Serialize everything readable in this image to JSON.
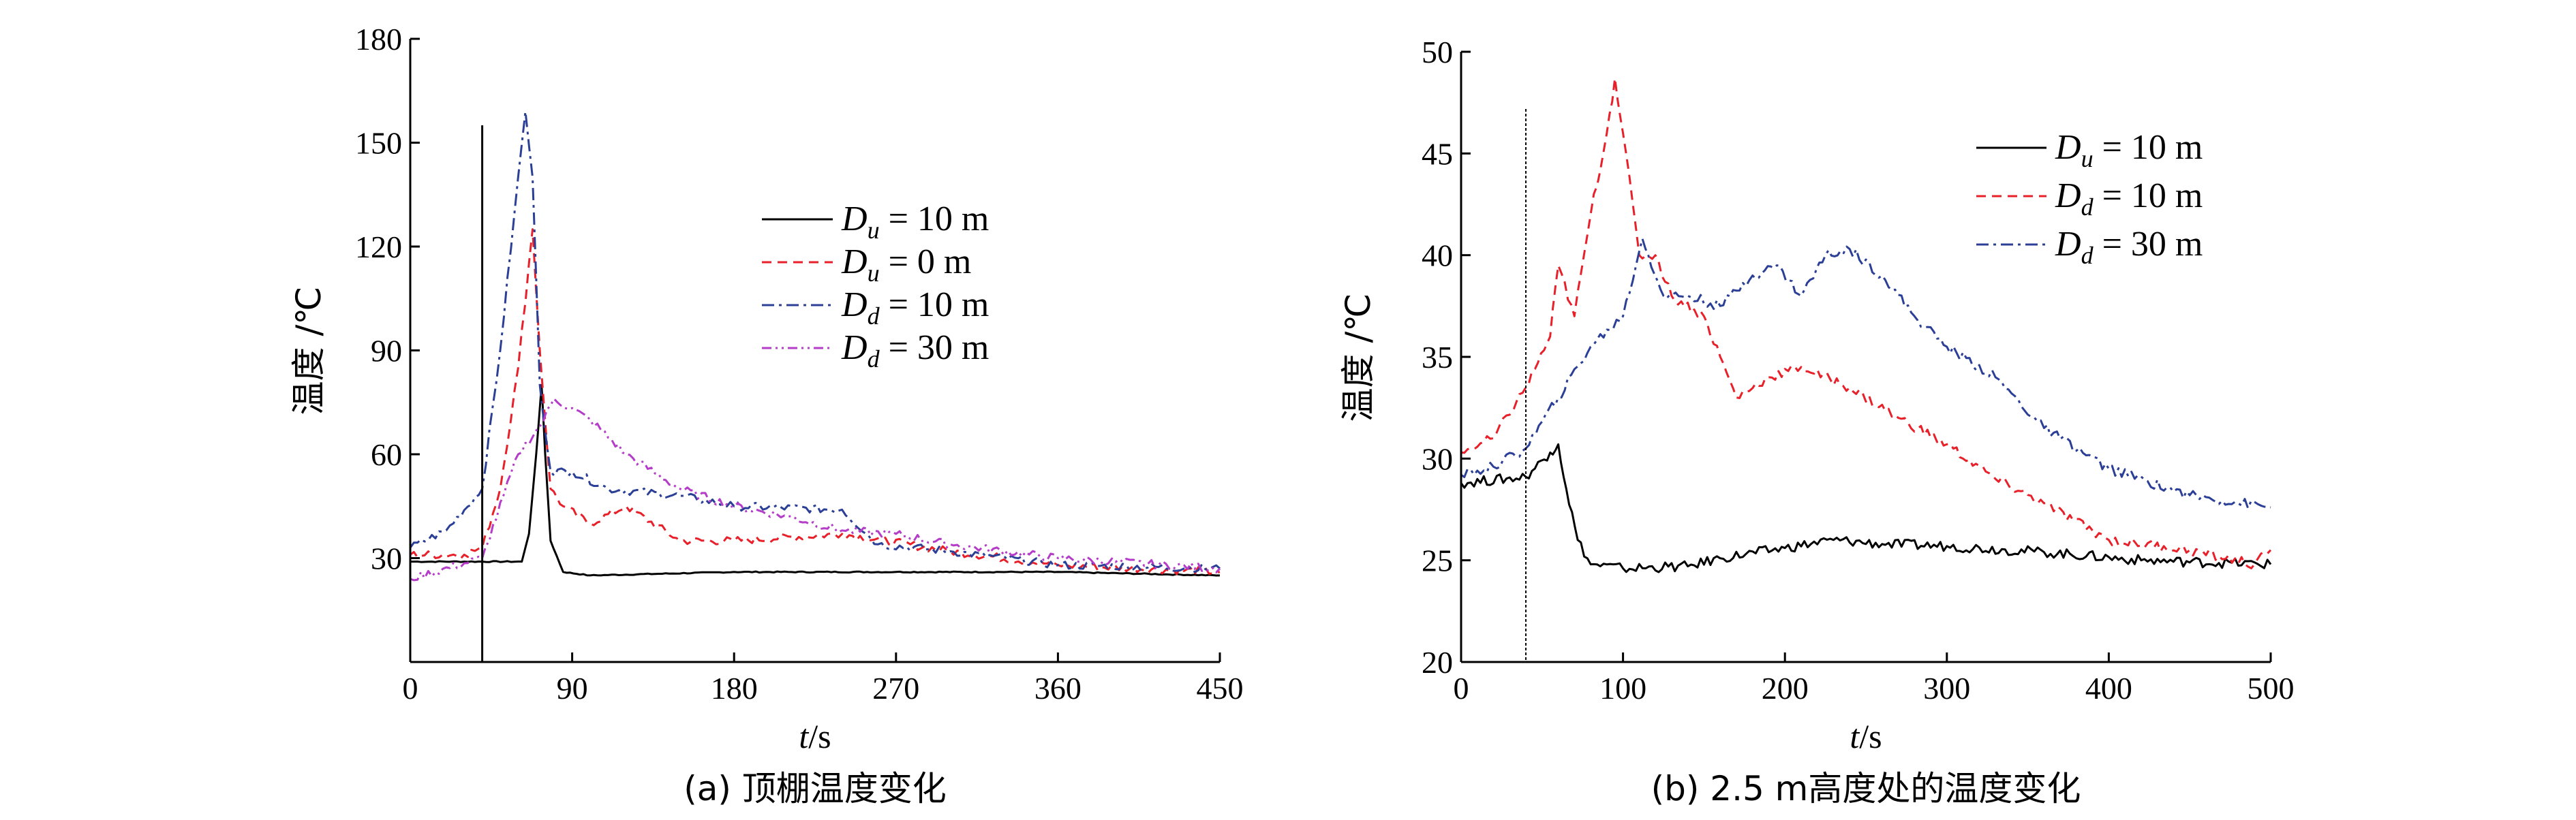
{
  "chart_data": [
    {
      "type": "line",
      "caption": "(a) 顶棚温度变化",
      "xlabel": {
        "var": "t",
        "unit": "/s"
      },
      "ylabel": "温度 /℃",
      "xlim": [
        0,
        450
      ],
      "ylim": [
        0,
        180
      ],
      "xticks": [
        "0",
        "90",
        "180",
        "270",
        "360",
        "450"
      ],
      "yticks": [
        "30",
        "60",
        "90",
        "120",
        "150",
        "180"
      ],
      "marker_x": 40,
      "series": [
        {
          "name": "Du = 10 m",
          "label_main": "D",
          "label_sub": "u",
          "label_rest": " = 10 m",
          "color": "#000000",
          "dash": "",
          "points": [
            [
              0,
              29
            ],
            [
              62,
              29
            ],
            [
              66,
              37
            ],
            [
              70,
              60
            ],
            [
              73,
              80
            ],
            [
              75,
              60
            ],
            [
              78,
              35
            ],
            [
              85,
              26
            ],
            [
              100,
              25
            ],
            [
              180,
              26
            ],
            [
              270,
              26
            ],
            [
              360,
              26
            ],
            [
              450,
              25
            ]
          ]
        },
        {
          "name": "Du = 0 m",
          "label_main": "D",
          "label_sub": "u",
          "label_rest": " = 0 m",
          "color": "#e8202a",
          "dash": "14,9",
          "points": [
            [
              0,
              31
            ],
            [
              30,
              31
            ],
            [
              40,
              33
            ],
            [
              50,
              50
            ],
            [
              60,
              85
            ],
            [
              68,
              125
            ],
            [
              72,
              90
            ],
            [
              78,
              50
            ],
            [
              85,
              45
            ],
            [
              100,
              40
            ],
            [
              120,
              45
            ],
            [
              150,
              35
            ],
            [
              180,
              35
            ],
            [
              240,
              37
            ],
            [
              300,
              32
            ],
            [
              360,
              28
            ],
            [
              450,
              26
            ]
          ]
        },
        {
          "name": "Dd = 10 m",
          "label_main": "D",
          "label_sub": "d",
          "label_rest": " = 10 m",
          "color": "#2b3f96",
          "dash": "18,7,4,7",
          "points": [
            [
              0,
              33
            ],
            [
              20,
              38
            ],
            [
              40,
              50
            ],
            [
              50,
              90
            ],
            [
              58,
              130
            ],
            [
              64,
              159
            ],
            [
              68,
              140
            ],
            [
              72,
              80
            ],
            [
              78,
              55
            ],
            [
              90,
              55
            ],
            [
              110,
              50
            ],
            [
              150,
              48
            ],
            [
              180,
              45
            ],
            [
              240,
              44
            ],
            [
              260,
              34
            ],
            [
              300,
              32
            ],
            [
              360,
              28
            ],
            [
              450,
              27
            ]
          ]
        },
        {
          "name": "Dd = 30 m",
          "label_main": "D",
          "label_sub": "d",
          "label_rest": " = 30 m",
          "color": "#b43cc8",
          "dash": "14,6,3,6,3,6",
          "points": [
            [
              0,
              24
            ],
            [
              40,
              30
            ],
            [
              60,
              60
            ],
            [
              72,
              68
            ],
            [
              80,
              76
            ],
            [
              100,
              70
            ],
            [
              120,
              60
            ],
            [
              150,
              50
            ],
            [
              180,
              45
            ],
            [
              210,
              42
            ],
            [
              240,
              38
            ],
            [
              270,
              37
            ],
            [
              300,
              34
            ],
            [
              360,
              30
            ],
            [
              450,
              27
            ]
          ]
        }
      ]
    },
    {
      "type": "line",
      "caption": "(b) 2.5 m高度处的温度变化",
      "xlabel": {
        "var": "t",
        "unit": "/s"
      },
      "ylabel": "温度 /℃",
      "xlim": [
        0,
        500
      ],
      "ylim": [
        20,
        50
      ],
      "xticks": [
        "0",
        "100",
        "200",
        "300",
        "400",
        "500"
      ],
      "yticks": [
        "20",
        "25",
        "30",
        "35",
        "40",
        "45",
        "50"
      ],
      "marker_x": 40,
      "series": [
        {
          "name": "Du = 10 m",
          "label_main": "D",
          "label_sub": "u",
          "label_rest": " = 10 m",
          "color": "#000000",
          "dash": "",
          "points": [
            [
              0,
              28.8
            ],
            [
              40,
              29.1
            ],
            [
              55,
              30.3
            ],
            [
              60,
              30.7
            ],
            [
              65,
              28.5
            ],
            [
              72,
              26
            ],
            [
              80,
              24.8
            ],
            [
              100,
              24.6
            ],
            [
              140,
              24.7
            ],
            [
              160,
              25.1
            ],
            [
              200,
              25.6
            ],
            [
              230,
              26
            ],
            [
              260,
              25.8
            ],
            [
              300,
              25.7
            ],
            [
              360,
              25.4
            ],
            [
              420,
              25
            ],
            [
              500,
              24.8
            ]
          ]
        },
        {
          "name": "Dd = 10 m",
          "label_main": "D",
          "label_sub": "d",
          "label_rest": " = 10 m",
          "color": "#e8202a",
          "dash": "14,9",
          "points": [
            [
              0,
              30.3
            ],
            [
              20,
              31
            ],
            [
              40,
              33.5
            ],
            [
              55,
              36
            ],
            [
              60,
              39.5
            ],
            [
              70,
              37
            ],
            [
              80,
              42
            ],
            [
              90,
              46
            ],
            [
              95,
              48.7
            ],
            [
              100,
              46
            ],
            [
              110,
              40
            ],
            [
              120,
              40
            ],
            [
              130,
              38
            ],
            [
              150,
              37
            ],
            [
              170,
              33
            ],
            [
              190,
              34
            ],
            [
              210,
              34.5
            ],
            [
              240,
              33.5
            ],
            [
              270,
              32
            ],
            [
              300,
              30.7
            ],
            [
              330,
              29
            ],
            [
              360,
              27.8
            ],
            [
              400,
              26
            ],
            [
              450,
              25.5
            ],
            [
              490,
              24.8
            ],
            [
              500,
              25.5
            ]
          ]
        },
        {
          "name": "Dd = 30 m",
          "label_main": "D",
          "label_sub": "d",
          "label_rest": " = 30 m",
          "color": "#2b3f96",
          "dash": "18,7,4,7",
          "points": [
            [
              0,
              29.2
            ],
            [
              20,
              29.6
            ],
            [
              40,
              30.5
            ],
            [
              60,
              33
            ],
            [
              80,
              35.5
            ],
            [
              100,
              37
            ],
            [
              112,
              40.8
            ],
            [
              125,
              38
            ],
            [
              140,
              38
            ],
            [
              160,
              37.5
            ],
            [
              180,
              39
            ],
            [
              195,
              39.5
            ],
            [
              210,
              38
            ],
            [
              225,
              40
            ],
            [
              240,
              40.3
            ],
            [
              260,
              39
            ],
            [
              280,
              37
            ],
            [
              300,
              35.5
            ],
            [
              330,
              34
            ],
            [
              360,
              31.5
            ],
            [
              400,
              29.5
            ],
            [
              450,
              28.2
            ],
            [
              500,
              27.6
            ]
          ]
        }
      ]
    }
  ]
}
